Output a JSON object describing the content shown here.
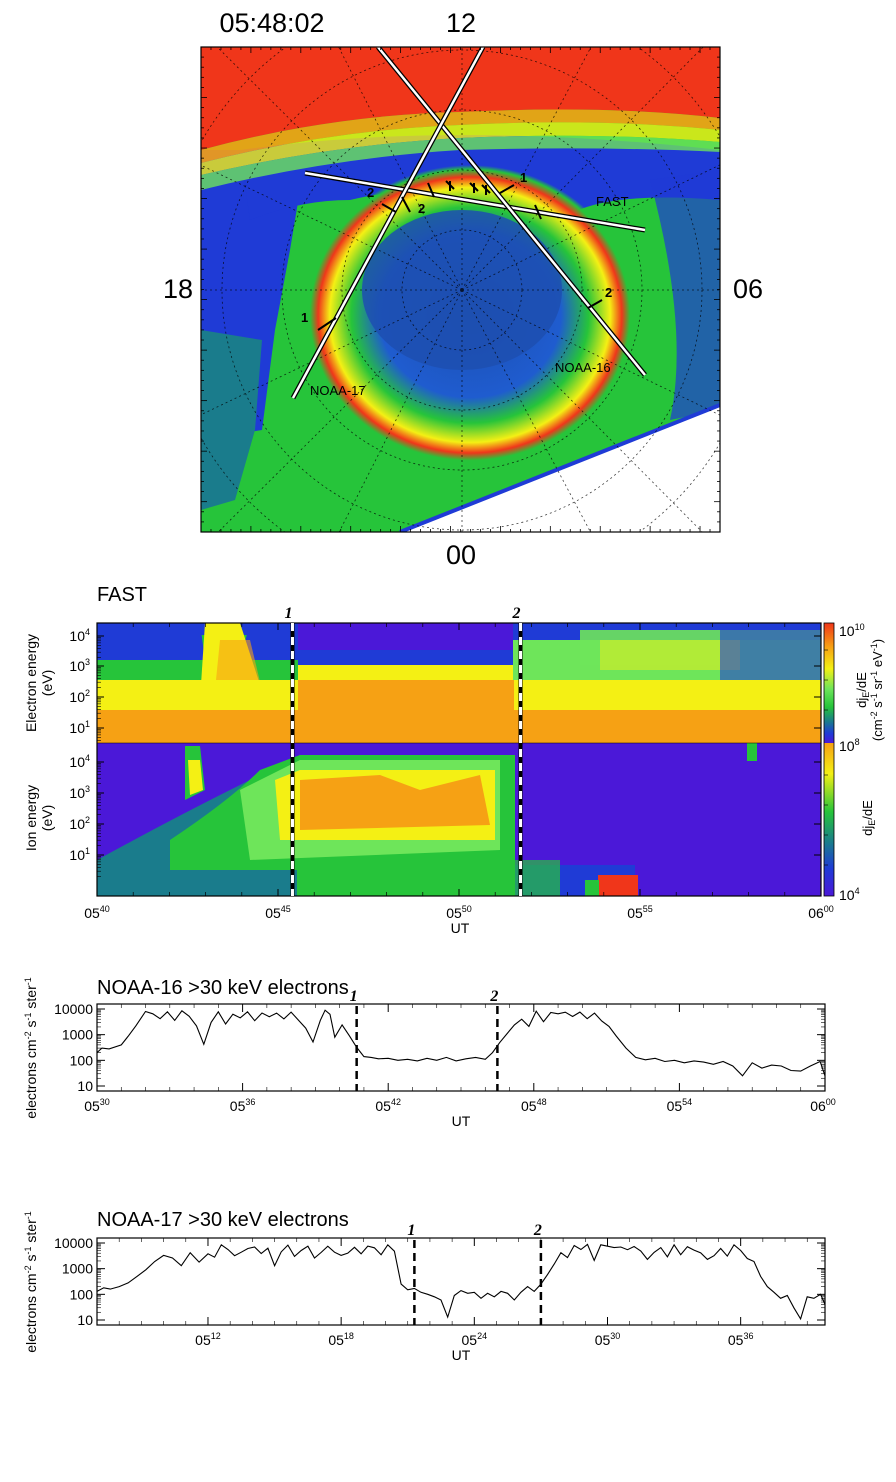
{
  "map": {
    "time": "05:48:02",
    "mlt_top": "12",
    "mlt_left": "18",
    "mlt_right": "06",
    "mlt_bottom": "00",
    "track_labels": [
      "FAST",
      "NOAA-16",
      "NOAA-17"
    ],
    "marker_labels": [
      "1",
      "2"
    ]
  },
  "colors": {
    "violet": "#4b18d8",
    "blue": "#1f3bd6",
    "dark_blue": "#1d4fb0",
    "teal": "#1a7c8c",
    "green": "#26c43a",
    "light_green": "#6ee55a",
    "yellow": "#f4f014",
    "orange": "#f6a114",
    "red": "#f0361a"
  },
  "fast": {
    "title": "FAST",
    "electron_ylabel": "Electron energy (eV)",
    "ion_ylabel": "Ion energy (eV)",
    "xlabel": "UT",
    "x_ticks": [
      "05:40",
      "05:45",
      "05:50",
      "05:55",
      "06:00"
    ],
    "y_ticks": [
      "10^4",
      "10^3",
      "10^2",
      "10^1"
    ],
    "markers": [
      {
        "label": "1",
        "time_min": 45.4
      },
      {
        "label": "2",
        "time_min": 51.7
      }
    ],
    "cbar_electron_label": "dj_E/dE (cm^-2 s^-1 sr^-1 eV^-1)",
    "cbar_ion_label": "dj_E/dE",
    "cbar_ticks": [
      "10^10",
      "10^8",
      "10^4"
    ]
  },
  "chart_data": [
    {
      "type": "line",
      "title": "NOAA-16  >30 keV electrons",
      "xlabel": "UT",
      "ylabel": "electrons cm-2 s-1 ster-1",
      "yscale": "log",
      "ylim": [
        10,
        10000
      ],
      "xlim_min": [
        330,
        360
      ],
      "x_ticks": [
        "05:30",
        "05:36",
        "05:42",
        "05:48",
        "05:54",
        "06:00"
      ],
      "y_ticks": [
        "10",
        "100",
        "1000",
        "10000"
      ],
      "markers": [
        {
          "label": "1",
          "x": 340.7
        },
        {
          "label": "2",
          "x": 346.5
        }
      ],
      "series": [
        {
          "x": [
            330.0,
            330.2,
            330.5,
            331.0,
            331.3,
            331.6,
            332.0,
            332.3,
            332.6,
            332.9,
            333.2,
            333.5,
            333.8,
            334.1,
            334.4,
            334.7,
            335.0,
            335.3,
            335.6,
            335.9,
            336.2,
            336.5,
            336.8,
            337.1,
            337.4,
            337.7,
            338.0,
            338.3,
            338.6,
            338.9,
            339.2,
            339.4,
            339.6,
            339.8,
            340.1,
            340.4,
            340.7,
            341.0,
            341.3,
            341.6,
            342.0,
            342.4,
            342.8,
            343.2,
            343.6,
            344.0,
            344.4,
            344.8,
            345.2,
            345.6,
            346.0,
            346.3,
            346.6,
            346.9,
            347.2,
            347.5,
            347.8,
            348.1,
            348.4,
            348.7,
            349.0,
            349.3,
            349.6,
            349.9,
            350.2,
            350.5,
            350.8,
            351.1,
            351.4,
            351.8,
            352.2,
            352.6,
            353.0,
            353.4,
            353.8,
            354.2,
            354.6,
            355.0,
            355.4,
            355.8,
            356.2,
            356.6,
            357.0,
            357.4,
            357.8,
            358.2,
            358.6,
            359.0,
            359.4,
            359.8,
            360.0
          ],
          "y": [
            200,
            300,
            280,
            400,
            900,
            2200,
            8000,
            6500,
            4200,
            7800,
            3600,
            8500,
            5200,
            2200,
            420,
            3000,
            7800,
            2600,
            6300,
            4500,
            7800,
            3500,
            7000,
            5000,
            6900,
            4100,
            7600,
            3700,
            1800,
            520,
            3600,
            9000,
            6200,
            800,
            2400,
            900,
            320,
            140,
            130,
            115,
            120,
            100,
            110,
            95,
            120,
            100,
            130,
            95,
            115,
            130,
            110,
            200,
            500,
            1100,
            2400,
            4000,
            2100,
            8200,
            3200,
            7300,
            6500,
            7500,
            5100,
            7600,
            4200,
            6900,
            3400,
            2100,
            880,
            300,
            130,
            105,
            120,
            90,
            100,
            80,
            95,
            85,
            70,
            90,
            60,
            25,
            80,
            50,
            65,
            60,
            40,
            38,
            60,
            90,
            25
          ]
        }
      ]
    },
    {
      "type": "line",
      "title": "NOAA-17  >30 keV electrons",
      "xlabel": "UT",
      "ylabel": "electrons cm-2 s-1 ster-1",
      "yscale": "log",
      "ylim": [
        10,
        10000
      ],
      "xlim_min": [
        307,
        339.8
      ],
      "x_ticks": [
        "05:12",
        "05:18",
        "05:24",
        "05:30",
        "05:36"
      ],
      "y_ticks": [
        "10",
        "100",
        "1000",
        "10000"
      ],
      "markers": [
        {
          "label": "1",
          "x": 321.3
        },
        {
          "label": "2",
          "x": 327.0
        }
      ],
      "series": [
        {
          "x": [
            307.0,
            307.3,
            307.6,
            308.0,
            308.4,
            308.8,
            309.2,
            309.6,
            310.0,
            310.4,
            310.8,
            311.2,
            311.6,
            312.0,
            312.3,
            312.6,
            312.9,
            313.2,
            313.5,
            313.8,
            314.1,
            314.4,
            314.7,
            315.0,
            315.3,
            315.6,
            315.9,
            316.2,
            316.5,
            316.8,
            317.1,
            317.4,
            317.7,
            318.0,
            318.3,
            318.6,
            318.9,
            319.2,
            319.5,
            319.8,
            320.1,
            320.4,
            320.7,
            321.0,
            321.3,
            321.6,
            321.9,
            322.2,
            322.5,
            322.8,
            323.1,
            323.4,
            323.7,
            324.0,
            324.3,
            324.6,
            324.9,
            325.2,
            325.5,
            325.8,
            326.1,
            326.4,
            326.7,
            327.0,
            327.3,
            327.6,
            327.9,
            328.2,
            328.5,
            328.8,
            329.1,
            329.4,
            329.7,
            330.0,
            330.3,
            330.6,
            330.9,
            331.2,
            331.5,
            331.8,
            332.1,
            332.4,
            332.7,
            333.0,
            333.3,
            333.6,
            333.9,
            334.2,
            334.5,
            334.8,
            335.1,
            335.4,
            335.7,
            336.0,
            336.3,
            336.6,
            336.9,
            337.2,
            337.5,
            337.8,
            338.1,
            338.4,
            338.7,
            339.0,
            339.3,
            339.6,
            339.8
          ],
          "y": [
            130,
            180,
            160,
            200,
            280,
            500,
            900,
            1900,
            3300,
            2600,
            1300,
            4200,
            1800,
            3800,
            2800,
            8500,
            5600,
            3200,
            4400,
            6100,
            7000,
            3900,
            6300,
            1300,
            4500,
            8300,
            3000,
            5100,
            7500,
            2600,
            4300,
            7500,
            4400,
            3300,
            4000,
            6800,
            3800,
            7600,
            6500,
            3500,
            8500,
            4800,
            250,
            150,
            170,
            120,
            100,
            80,
            60,
            13,
            90,
            140,
            110,
            120,
            70,
            110,
            80,
            130,
            110,
            60,
            120,
            200,
            130,
            250,
            600,
            1500,
            4200,
            2700,
            8000,
            5600,
            8800,
            2100,
            8500,
            7500,
            6600,
            7000,
            5500,
            7300,
            4900,
            2300,
            4300,
            6600,
            2900,
            8500,
            3500,
            7200,
            5300,
            4100,
            2300,
            3200,
            6100,
            3100,
            8500,
            5100,
            2500,
            1900,
            500,
            200,
            120,
            70,
            90,
            30,
            11,
            80,
            70,
            100,
            40
          ]
        }
      ]
    }
  ]
}
